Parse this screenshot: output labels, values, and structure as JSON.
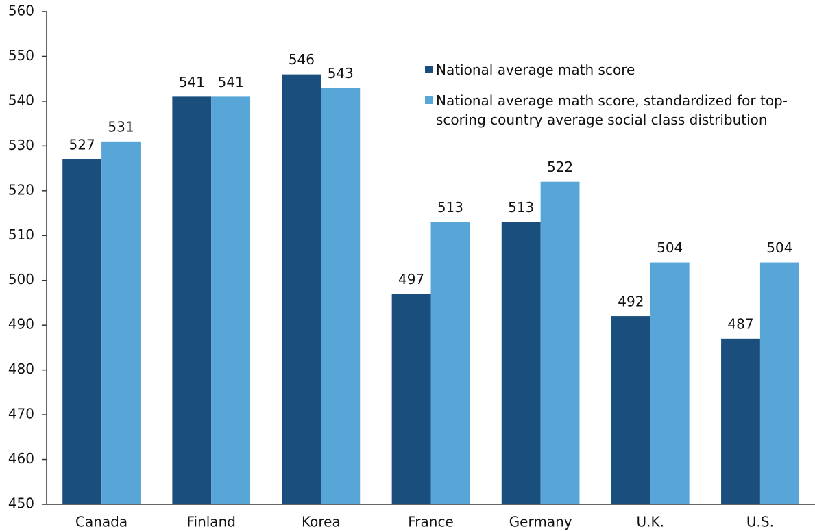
{
  "chart_data": {
    "type": "bar",
    "categories": [
      "Canada",
      "Finland",
      "Korea",
      "France",
      "Germany",
      "U.K.",
      "U.S."
    ],
    "series": [
      {
        "name": "National average math score",
        "color": "#1a4e7c",
        "values": [
          527,
          541,
          546,
          497,
          513,
          492,
          487
        ]
      },
      {
        "name": "National average math score, standardized for top-scoring country average social class distribution",
        "color": "#58a5d8",
        "values": [
          531,
          541,
          543,
          513,
          522,
          504,
          504
        ]
      }
    ],
    "ylim": [
      450,
      560
    ],
    "yticks": [
      450,
      460,
      470,
      480,
      490,
      500,
      510,
      520,
      530,
      540,
      550,
      560
    ],
    "grid": false,
    "legend": "top-right"
  }
}
